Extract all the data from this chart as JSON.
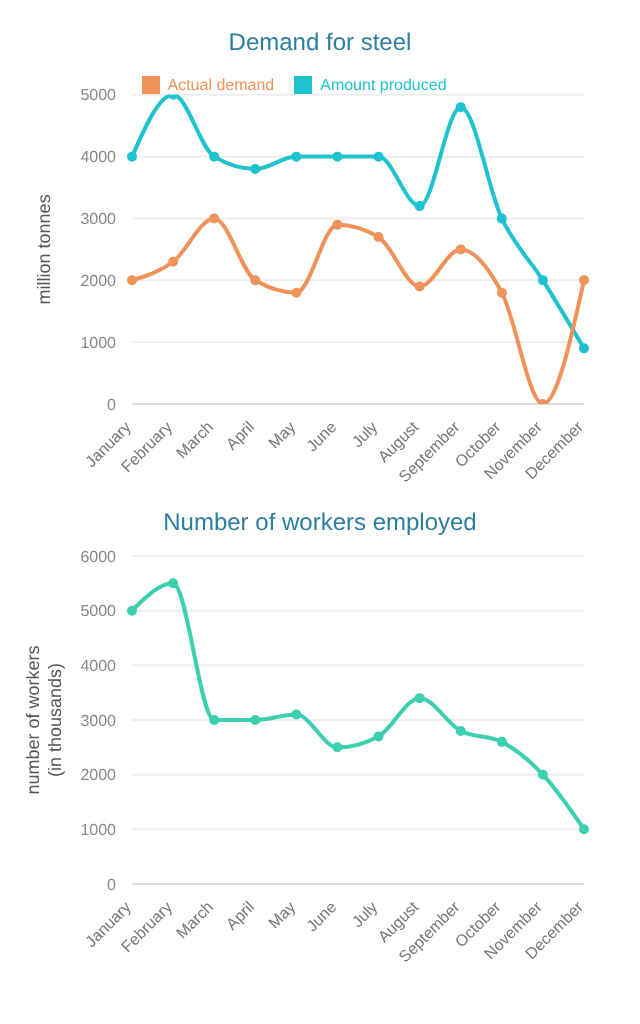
{
  "chart_data": [
    {
      "type": "line",
      "title": "Demand for steel",
      "ylabel": "million tonnes",
      "categories": [
        "January",
        "February",
        "March",
        "April",
        "May",
        "June",
        "July",
        "August",
        "September",
        "October",
        "November",
        "December"
      ],
      "series": [
        {
          "name": "Amount produced",
          "color": "#1fc3cf",
          "values": [
            4000,
            5000,
            4000,
            3800,
            4000,
            4000,
            4000,
            3200,
            4800,
            3000,
            2000,
            900
          ]
        },
        {
          "name": "Actual demand",
          "color": "#f0935a",
          "values": [
            2000,
            2300,
            3000,
            2000,
            1800,
            2900,
            2700,
            1900,
            2500,
            1800,
            0,
            2000
          ]
        }
      ],
      "ylim": [
        0,
        5000
      ],
      "yticks": [
        0,
        1000,
        2000,
        3000,
        4000,
        5000
      ],
      "grid": "y",
      "legend": "top",
      "marker": "circle"
    },
    {
      "type": "line",
      "title": "Number of workers employed",
      "ylabel": "number of workers\n(in thousands)",
      "categories": [
        "January",
        "February",
        "March",
        "April",
        "May",
        "June",
        "July",
        "August",
        "September",
        "October",
        "November",
        "December"
      ],
      "series": [
        {
          "color": "#3ccfb0",
          "values": [
            5000,
            5500,
            3000,
            3000,
            3100,
            2500,
            2700,
            3400,
            2800,
            2600,
            2000,
            1000
          ]
        }
      ],
      "ylim": [
        0,
        6000
      ],
      "yticks": [
        0,
        1000,
        2000,
        3000,
        4000,
        5000,
        6000
      ],
      "grid": "y",
      "marker": "circle"
    }
  ]
}
